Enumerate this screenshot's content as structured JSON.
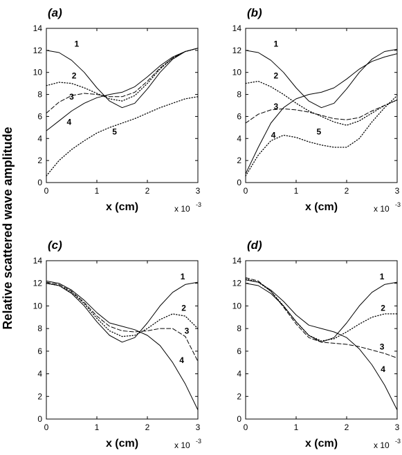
{
  "figure": {
    "ylabel": "Relative scattered wave amplitude",
    "exponent_text": "x 10",
    "exponent_power": "-3"
  },
  "chart_data": [
    {
      "type": "line",
      "panel_label": "(a)",
      "xlabel": "x  (cm)",
      "xlim": [
        0,
        3
      ],
      "ylim": [
        0,
        14
      ],
      "xticks": [
        "0",
        "1",
        "2",
        "3"
      ],
      "yticks": [
        "0",
        "2",
        "4",
        "6",
        "8",
        "10",
        "12",
        "14"
      ],
      "x_scale_note": "x 10^-3",
      "series": [
        {
          "name": "1",
          "style": "solid",
          "x": [
            0,
            0.25,
            0.5,
            0.75,
            1,
            1.25,
            1.5,
            1.75,
            2,
            2.25,
            2.5,
            2.75,
            3
          ],
          "y": [
            12,
            11.8,
            11.1,
            10,
            8.6,
            7.4,
            6.8,
            7.2,
            8.5,
            10,
            11.2,
            11.9,
            12.2
          ]
        },
        {
          "name": "2",
          "style": "dotted",
          "x": [
            0,
            0.25,
            0.5,
            0.75,
            1,
            1.25,
            1.5,
            1.75,
            2,
            2.25,
            2.5,
            2.75,
            3
          ],
          "y": [
            8.8,
            9.1,
            9,
            8.6,
            8.1,
            7.6,
            7.4,
            7.9,
            9,
            10.3,
            11.3,
            11.9,
            12.2
          ]
        },
        {
          "name": "3",
          "style": "dashed",
          "x": [
            0,
            0.25,
            0.5,
            0.75,
            1,
            1.25,
            1.5,
            1.75,
            2,
            2.25,
            2.5,
            2.75,
            3
          ],
          "y": [
            6.3,
            7.3,
            7.9,
            8.1,
            8,
            7.8,
            7.8,
            8.2,
            9.2,
            10.4,
            11.3,
            11.9,
            12.2
          ]
        },
        {
          "name": "4",
          "style": "solid",
          "x": [
            0,
            0.25,
            0.5,
            0.75,
            1,
            1.25,
            1.5,
            1.75,
            2,
            2.25,
            2.5,
            2.75,
            3
          ],
          "y": [
            4.7,
            5.6,
            6.5,
            7.2,
            7.7,
            8,
            8.2,
            8.7,
            9.6,
            10.6,
            11.4,
            11.9,
            12.2
          ]
        },
        {
          "name": "5",
          "style": "dotted",
          "x": [
            0,
            0.25,
            0.5,
            0.75,
            1,
            1.25,
            1.5,
            1.75,
            2,
            2.25,
            2.5,
            2.75,
            3
          ],
          "y": [
            0.6,
            2,
            3,
            3.8,
            4.5,
            5,
            5.4,
            5.8,
            6.3,
            6.8,
            7.2,
            7.6,
            7.8
          ]
        }
      ]
    },
    {
      "type": "line",
      "panel_label": "(b)",
      "xlabel": "x  (cm)",
      "xlim": [
        0,
        3
      ],
      "ylim": [
        0,
        14
      ],
      "xticks": [
        "0",
        "1",
        "2",
        "3"
      ],
      "yticks": [
        "0",
        "2",
        "4",
        "6",
        "8",
        "10",
        "12",
        "14"
      ],
      "x_scale_note": "x 10^-3",
      "series": [
        {
          "name": "1",
          "style": "solid",
          "x": [
            0,
            0.25,
            0.5,
            0.75,
            1,
            1.25,
            1.5,
            1.75,
            2,
            2.25,
            2.5,
            2.75,
            3
          ],
          "y": [
            12,
            11.8,
            11.1,
            10,
            8.6,
            7.4,
            6.8,
            7.2,
            8.5,
            10,
            11.2,
            11.9,
            12.1
          ]
        },
        {
          "name": "2",
          "style": "dotted",
          "x": [
            0,
            0.25,
            0.5,
            0.75,
            1,
            1.25,
            1.5,
            1.75,
            2,
            2.25,
            2.5,
            2.75,
            3
          ],
          "y": [
            9,
            9.2,
            8.7,
            8,
            7.2,
            6.5,
            6,
            5.5,
            5.2,
            5.6,
            6.3,
            7,
            7.5
          ]
        },
        {
          "name": "3",
          "style": "dashed",
          "x": [
            0,
            0.25,
            0.5,
            0.75,
            1,
            1.25,
            1.5,
            1.75,
            2,
            2.25,
            2.5,
            2.75,
            3
          ],
          "y": [
            5.4,
            6.2,
            6.6,
            6.7,
            6.6,
            6.4,
            6.1,
            5.8,
            5.7,
            5.9,
            6.5,
            7,
            7.5
          ]
        },
        {
          "name": "4",
          "style": "solid",
          "x": [
            0,
            0.25,
            0.5,
            0.75,
            1,
            1.25,
            1.5,
            1.75,
            2,
            2.25,
            2.5,
            2.75,
            3
          ],
          "y": [
            0.8,
            3.2,
            5.4,
            6.8,
            7.6,
            8,
            8.2,
            8.6,
            9.4,
            10.3,
            11,
            11.4,
            11.7
          ]
        },
        {
          "name": "5",
          "style": "dotted",
          "x": [
            0,
            0.25,
            0.5,
            0.75,
            1,
            1.25,
            1.5,
            1.75,
            2,
            2.25,
            2.5,
            2.75,
            3
          ],
          "y": [
            0.6,
            2.5,
            3.8,
            4.3,
            4.1,
            3.7,
            3.4,
            3.2,
            3.2,
            4,
            5.5,
            6.8,
            7.9
          ]
        }
      ]
    },
    {
      "type": "line",
      "panel_label": "(c)",
      "xlabel": "x  (cm)",
      "xlim": [
        0,
        3
      ],
      "ylim": [
        0,
        14
      ],
      "xticks": [
        "0",
        "1",
        "2",
        "3"
      ],
      "yticks": [
        "0",
        "2",
        "4",
        "6",
        "8",
        "10",
        "12",
        "14"
      ],
      "x_scale_note": "x 10^-3",
      "series": [
        {
          "name": "1",
          "style": "solid",
          "x": [
            0,
            0.25,
            0.5,
            0.75,
            1,
            1.25,
            1.5,
            1.75,
            2,
            2.25,
            2.5,
            2.75,
            3
          ],
          "y": [
            12,
            11.8,
            11.1,
            10,
            8.6,
            7.4,
            6.8,
            7.2,
            8.5,
            10,
            11.2,
            11.9,
            12.1
          ]
        },
        {
          "name": "2",
          "style": "dotted",
          "x": [
            0,
            0.25,
            0.5,
            0.75,
            1,
            1.25,
            1.5,
            1.75,
            2,
            2.25,
            2.5,
            2.75,
            3
          ],
          "y": [
            12,
            11.8,
            11.2,
            10.2,
            8.9,
            7.8,
            7.3,
            7.4,
            8,
            8.8,
            9.3,
            9.1,
            8
          ]
        },
        {
          "name": "3",
          "style": "dashed",
          "x": [
            0,
            0.25,
            0.5,
            0.75,
            1,
            1.25,
            1.5,
            1.75,
            2,
            2.25,
            2.5,
            2.75,
            3
          ],
          "y": [
            12.1,
            11.9,
            11.3,
            10.3,
            9.1,
            8.2,
            7.8,
            7.7,
            7.8,
            8,
            8,
            7.3,
            5.1
          ]
        },
        {
          "name": "4",
          "style": "solid",
          "x": [
            0,
            0.25,
            0.5,
            0.75,
            1,
            1.25,
            1.5,
            1.75,
            2,
            2.25,
            2.5,
            2.75,
            3
          ],
          "y": [
            12.2,
            12,
            11.4,
            10.5,
            9.4,
            8.5,
            8.2,
            7.9,
            7.4,
            6.5,
            5,
            3.1,
            0.8
          ]
        }
      ]
    },
    {
      "type": "line",
      "panel_label": "(d)",
      "xlabel": "x  (cm)",
      "xlim": [
        0,
        3
      ],
      "ylim": [
        0,
        14
      ],
      "xticks": [
        "0",
        "1",
        "2",
        "3"
      ],
      "yticks": [
        "0",
        "2",
        "4",
        "6",
        "8",
        "10",
        "12",
        "14"
      ],
      "x_scale_note": "x 10^-3",
      "series": [
        {
          "name": "1",
          "style": "solid",
          "x": [
            0,
            0.25,
            0.5,
            0.75,
            1,
            1.25,
            1.5,
            1.75,
            2,
            2.25,
            2.5,
            2.75,
            3
          ],
          "y": [
            12,
            11.8,
            11.1,
            10,
            8.6,
            7.4,
            6.8,
            7.2,
            8.5,
            10,
            11.2,
            11.9,
            12.1
          ]
        },
        {
          "name": "2",
          "style": "dotted",
          "x": [
            0,
            0.25,
            0.5,
            0.75,
            1,
            1.25,
            1.5,
            1.75,
            2,
            2.25,
            2.5,
            2.75,
            3
          ],
          "y": [
            12.4,
            12.1,
            11.3,
            10,
            8.6,
            7.4,
            6.9,
            7.1,
            7.7,
            8.4,
            9,
            9.3,
            9.3
          ]
        },
        {
          "name": "3",
          "style": "dashed",
          "x": [
            0,
            0.25,
            0.5,
            0.75,
            1,
            1.25,
            1.5,
            1.75,
            2,
            2.25,
            2.5,
            2.75,
            3
          ],
          "y": [
            12.5,
            12.2,
            11.3,
            9.9,
            8.4,
            7.2,
            6.8,
            6.7,
            6.6,
            6.4,
            6.1,
            5.8,
            5.4
          ]
        },
        {
          "name": "4",
          "style": "solid",
          "x": [
            0,
            0.25,
            0.5,
            0.75,
            1,
            1.25,
            1.5,
            1.75,
            2,
            2.25,
            2.5,
            2.75,
            3
          ],
          "y": [
            12.3,
            12.1,
            11.4,
            10.4,
            9.2,
            8.3,
            8,
            7.7,
            7.2,
            6.2,
            4.8,
            3,
            0.8
          ]
        }
      ]
    }
  ]
}
